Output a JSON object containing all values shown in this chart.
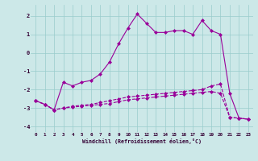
{
  "xlabel": "Windchill (Refroidissement éolien,°C)",
  "bg_color": "#cce8e8",
  "grid_color": "#99cccc",
  "line_color": "#990099",
  "ylim": [
    -4.3,
    2.6
  ],
  "xlim": [
    -0.5,
    23.5
  ],
  "yticks": [
    -4,
    -3,
    -2,
    -1,
    0,
    1,
    2
  ],
  "x_ticks": [
    0,
    1,
    2,
    3,
    4,
    5,
    6,
    7,
    8,
    9,
    10,
    11,
    12,
    13,
    14,
    15,
    16,
    17,
    18,
    19,
    20,
    21,
    22,
    23
  ],
  "series": [
    {
      "x": [
        0,
        1,
        2,
        3,
        4,
        5,
        6,
        7,
        8,
        9,
        10,
        11,
        12,
        13,
        14,
        15,
        16,
        17,
        18,
        19,
        20,
        21,
        22,
        23
      ],
      "y": [
        -2.6,
        -2.8,
        -3.1,
        -1.6,
        -1.8,
        -1.6,
        -1.5,
        -1.15,
        -0.5,
        0.5,
        1.35,
        2.1,
        1.6,
        1.1,
        1.1,
        1.2,
        1.2,
        1.0,
        1.75,
        1.2,
        1.0,
        -2.2,
        -3.55,
        -3.6
      ],
      "marker": "D",
      "linestyle": "-"
    },
    {
      "x": [
        0,
        1,
        2,
        3,
        4,
        5,
        6,
        7,
        8,
        9,
        10,
        11,
        12,
        13,
        14,
        15,
        16,
        17,
        18,
        19,
        20,
        21,
        22,
        23
      ],
      "y": [
        -2.6,
        -2.8,
        -3.1,
        -3.0,
        -2.9,
        -2.85,
        -2.8,
        -2.7,
        -2.6,
        -2.5,
        -2.4,
        -2.35,
        -2.3,
        -2.25,
        -2.2,
        -2.15,
        -2.1,
        -2.05,
        -2.0,
        -1.8,
        -1.7,
        -3.5,
        -3.55,
        -3.6
      ],
      "marker": "D",
      "linestyle": "--"
    },
    {
      "x": [
        0,
        1,
        2,
        3,
        4,
        5,
        6,
        7,
        8,
        9,
        10,
        11,
        12,
        13,
        14,
        15,
        16,
        17,
        18,
        19,
        20,
        21,
        22,
        23
      ],
      "y": [
        -2.6,
        -2.8,
        -3.1,
        -3.0,
        -2.95,
        -2.9,
        -2.85,
        -2.8,
        -2.75,
        -2.65,
        -2.55,
        -2.5,
        -2.45,
        -2.4,
        -2.35,
        -2.3,
        -2.25,
        -2.2,
        -2.15,
        -2.1,
        -2.2,
        -3.5,
        -3.55,
        -3.6
      ],
      "marker": "D",
      "linestyle": "--"
    }
  ]
}
